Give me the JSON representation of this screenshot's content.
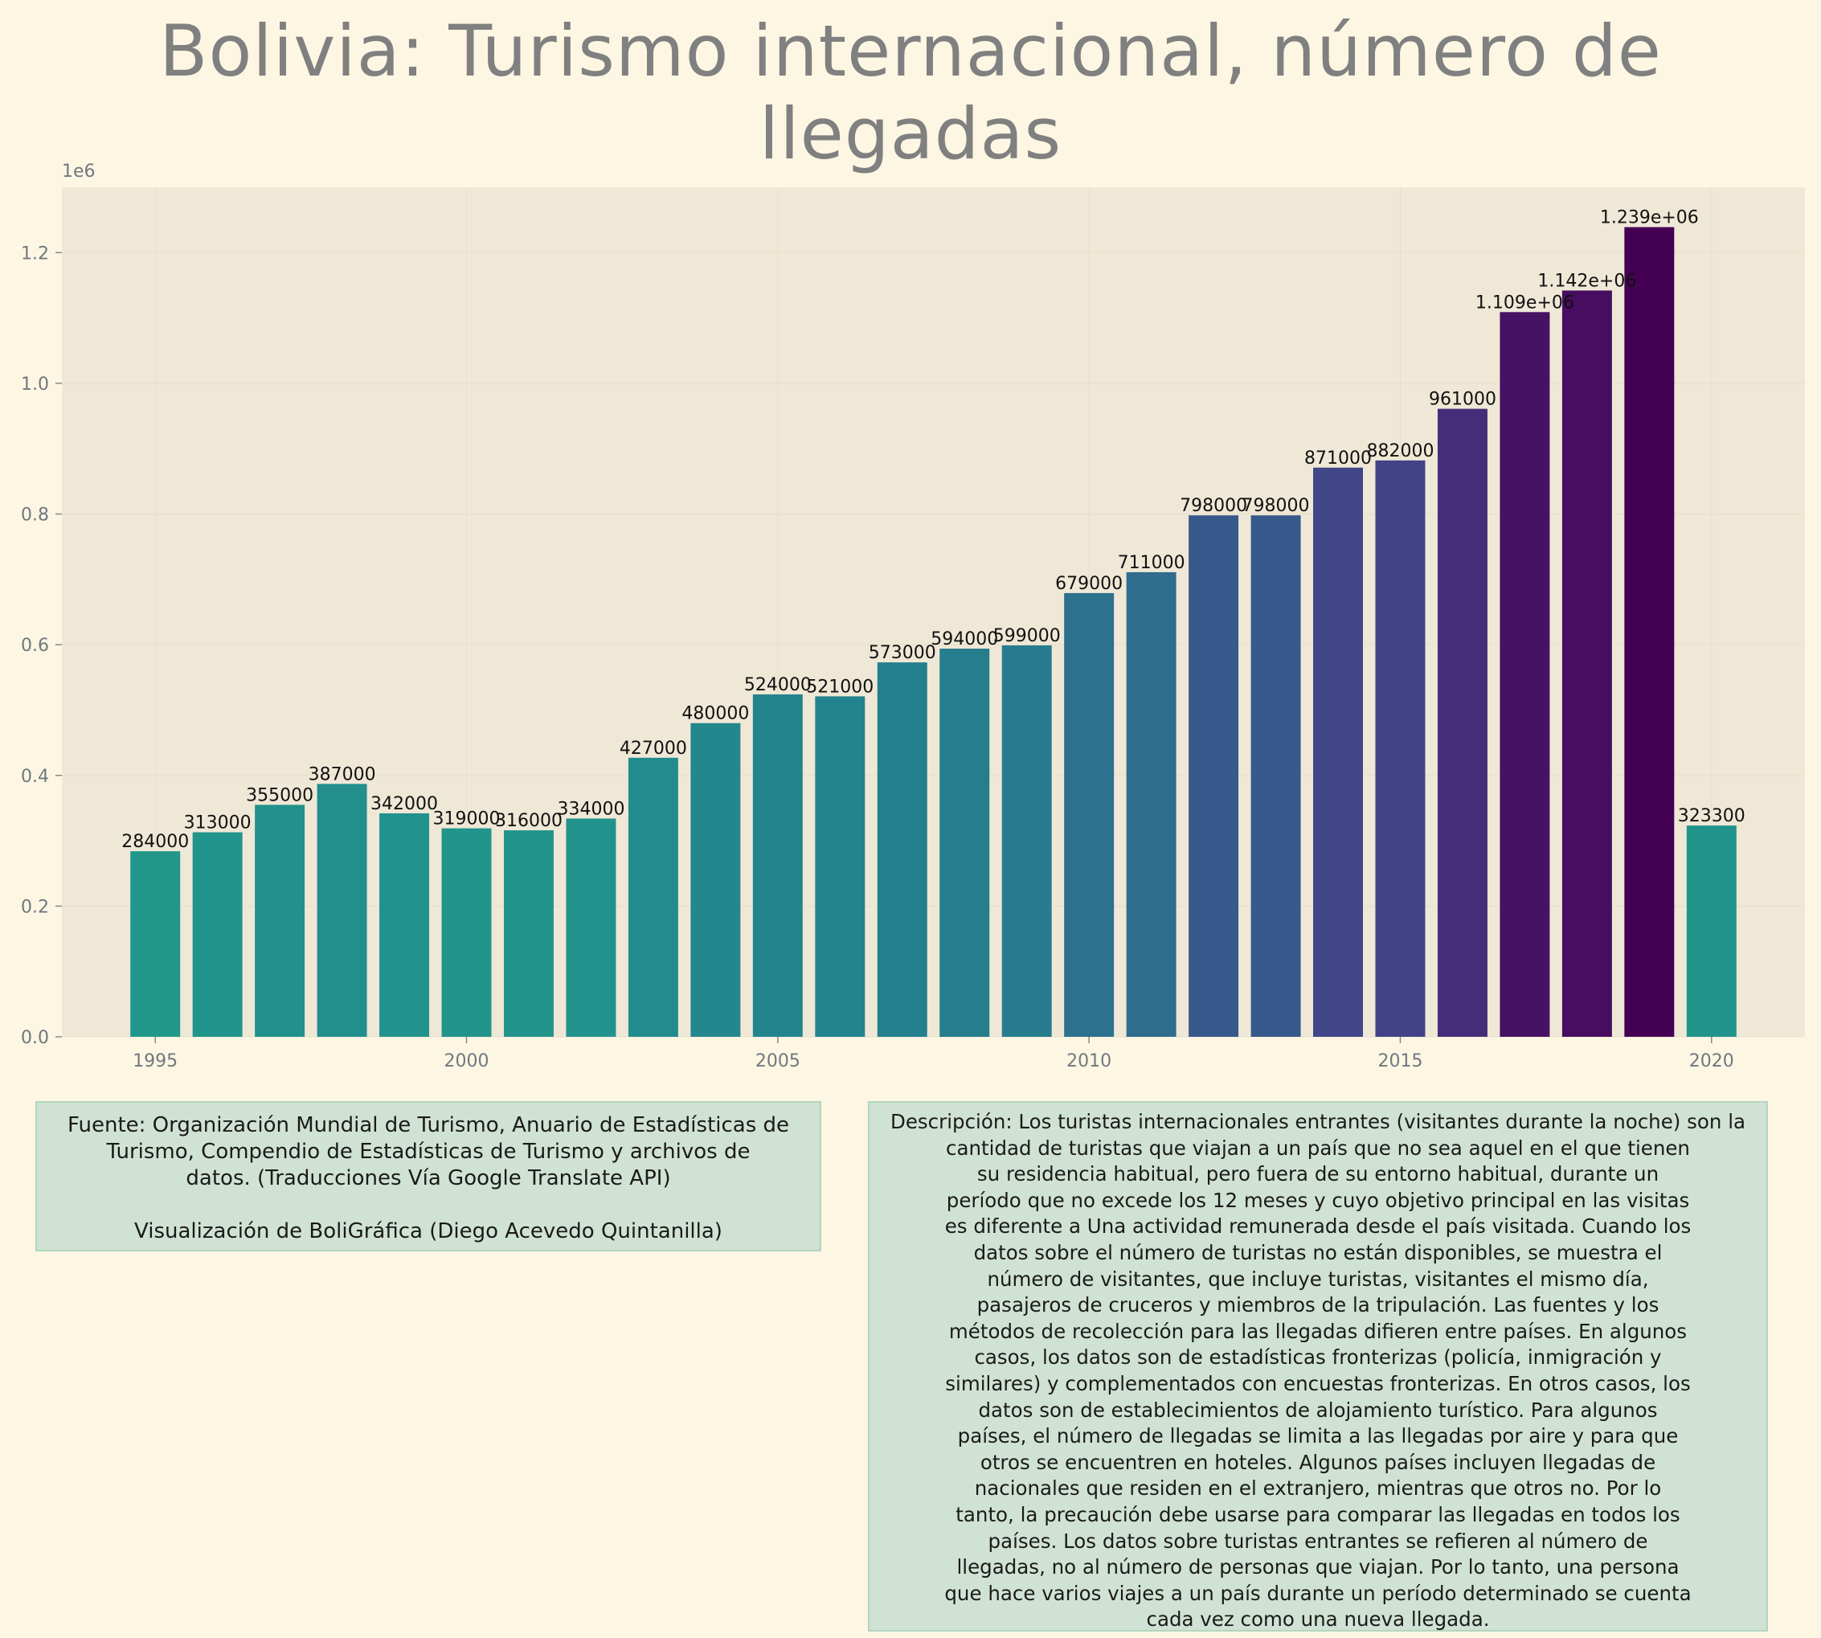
{
  "title": "Bolivia:  Turismo internacional, número de llegadas",
  "chart_data": {
    "type": "bar",
    "title": "Bolivia:  Turismo internacional, número de llegadas",
    "x": [
      1995,
      1996,
      1997,
      1998,
      1999,
      2000,
      2001,
      2002,
      2003,
      2004,
      2005,
      2006,
      2007,
      2008,
      2009,
      2010,
      2011,
      2012,
      2013,
      2014,
      2015,
      2016,
      2017,
      2018,
      2019,
      2020
    ],
    "values": [
      284000,
      313000,
      355000,
      387000,
      342000,
      319000,
      316000,
      334000,
      427000,
      480000,
      524000,
      521000,
      573000,
      594000,
      599000,
      679000,
      711000,
      798000,
      798000,
      871000,
      882000,
      961000,
      1109000,
      1142000,
      1239000,
      323300
    ],
    "bar_labels": [
      "284000",
      "313000",
      "355000",
      "387000",
      "342000",
      "319000",
      "316000",
      "334000",
      "427000",
      "480000",
      "524000",
      "521000",
      "573000",
      "594000",
      "599000",
      "679000",
      "711000",
      "798000",
      "798000",
      "871000",
      "882000",
      "961000",
      "1.109e+06",
      "1.142e+06",
      "1.239e+06",
      "323300"
    ],
    "x_ticks": [
      1995,
      2000,
      2005,
      2010,
      2015,
      2020
    ],
    "x_tick_labels": [
      "1995",
      "2000",
      "2005",
      "2010",
      "2015",
      "2020"
    ],
    "y_ticks": [
      0,
      200000,
      400000,
      600000,
      800000,
      1000000,
      1200000
    ],
    "y_tick_labels": [
      "0.0",
      "0.2",
      "0.4",
      "0.6",
      "0.8",
      "1.0",
      "1.2"
    ],
    "y_offset_label": "1e6",
    "xlim": [
      1993.5,
      2021.5
    ],
    "ylim": [
      0,
      1300000
    ],
    "xlabel": "",
    "ylabel": "",
    "grid": true,
    "colormap": "viridis-like (teal to dark purple by value)",
    "colors": {
      "page_background": "#fdf6e3",
      "plot_background": "#efe8d6",
      "text_box": "#d0e2d4",
      "text_box_border": "#b2d6bf",
      "title": "#808080"
    }
  },
  "source_box": {
    "line1": "Fuente: Organización Mundial de Turismo, Anuario de Estadísticas de",
    "line2": "Turismo, Compendio de Estadísticas de Turismo y archivos de",
    "line3": "datos. (Traducciones Vía Google Translate API)",
    "line4": "Visualización de BoliGráfica (Diego Acevedo Quintanilla)"
  },
  "description_box": {
    "lines": [
      "Descripción: Los turistas internacionales entrantes (visitantes durante la noche) son la",
      "cantidad de turistas que viajan a un país que no sea aquel en el que tienen",
      "su residencia habitual, pero fuera de su entorno habitual, durante un",
      "período que no excede los 12 meses y cuyo objetivo principal en las visitas",
      "es diferente a Una actividad remunerada desde el país visitada. Cuando los",
      "datos sobre el número de turistas no están disponibles, se muestra el",
      "número de visitantes, que incluye turistas, visitantes el mismo día,",
      "pasajeros de cruceros y miembros de la tripulación. Las fuentes y los",
      "métodos de recolección para las llegadas difieren entre países. En algunos",
      "casos, los datos son de estadísticas fronterizas (policía, inmigración y",
      "similares) y complementados con encuestas fronterizas. En otros casos, los",
      "datos son de establecimientos de alojamiento turístico. Para algunos",
      "países, el número de llegadas se limita a las llegadas por aire y para que",
      "otros se encuentren en hoteles. Algunos países incluyen llegadas de",
      "nacionales que residen en el extranjero, mientras que otros no. Por lo",
      "tanto, la precaución debe usarse para comparar las llegadas en todos los",
      "países. Los datos sobre turistas entrantes se refieren al número de",
      "llegadas, no al número de personas que viajan. Por lo tanto, una persona",
      "que hace varios viajes a un país durante un período determinado se cuenta",
      "cada vez como una nueva llegada."
    ]
  }
}
